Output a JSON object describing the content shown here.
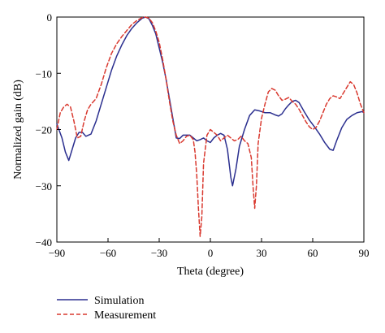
{
  "chart_data": {
    "type": "line",
    "title": "",
    "xlabel": "Theta (degree)",
    "ylabel": "Normalized gain (dB)",
    "xlim": [
      -90,
      90
    ],
    "ylim": [
      -40,
      0
    ],
    "xticks": [
      -90,
      -60,
      -30,
      0,
      30,
      60,
      90
    ],
    "yticks": [
      0,
      -10,
      -20,
      -30,
      -40
    ],
    "grid": false,
    "legend_position": "bottom-left, below plot",
    "series": [
      {
        "name": "Simulation",
        "color": "#2b2f8f",
        "style": "solid",
        "x": [
          -90,
          -87,
          -85,
          -83,
          -81,
          -79,
          -77,
          -75,
          -73,
          -70,
          -67,
          -64,
          -61,
          -58,
          -55,
          -52,
          -49,
          -46,
          -43,
          -40,
          -38,
          -36,
          -34,
          -32,
          -30,
          -28,
          -26,
          -24,
          -22,
          -20,
          -18,
          -16,
          -14,
          -12,
          -10,
          -8,
          -6,
          -4,
          -2,
          0,
          2,
          4,
          6,
          8,
          10,
          12,
          13,
          15,
          17,
          20,
          23,
          26,
          29,
          32,
          35,
          38,
          40,
          42,
          44,
          46,
          48,
          50,
          52,
          55,
          58,
          61,
          64,
          67,
          70,
          72,
          74,
          77,
          80,
          83,
          86,
          89,
          90
        ],
        "y": [
          -19,
          -21.5,
          -24,
          -25.5,
          -23.5,
          -21.5,
          -20.5,
          -20.5,
          -21.2,
          -20.8,
          -18.5,
          -15.5,
          -12.5,
          -9.5,
          -7,
          -5,
          -3.3,
          -2,
          -1,
          -0.2,
          0,
          -0.3,
          -1.5,
          -3,
          -5.5,
          -8,
          -11,
          -14.5,
          -18,
          -21.5,
          -21.6,
          -21,
          -21,
          -21,
          -21.5,
          -22,
          -21.8,
          -21.5,
          -22,
          -22.3,
          -21.5,
          -21,
          -20.7,
          -21,
          -23.5,
          -28.5,
          -30,
          -27,
          -23,
          -20,
          -17.5,
          -16.5,
          -16.7,
          -17,
          -17,
          -17.4,
          -17.6,
          -17.2,
          -16.3,
          -15.6,
          -15,
          -14.8,
          -15.2,
          -16.8,
          -18.3,
          -19.5,
          -20.8,
          -22.3,
          -23.5,
          -23.7,
          -22,
          -19.7,
          -18.2,
          -17.5,
          -17,
          -16.8,
          -17
        ]
      },
      {
        "name": "Measurement",
        "color": "#d9392f",
        "style": "dashed",
        "x": [
          -90,
          -88,
          -86,
          -84,
          -82,
          -80,
          -78,
          -76,
          -74,
          -72,
          -70,
          -67,
          -64,
          -61,
          -58,
          -55,
          -52,
          -49,
          -46,
          -43,
          -40,
          -38,
          -36,
          -34,
          -32,
          -30,
          -28,
          -26,
          -24,
          -22,
          -20,
          -18,
          -16,
          -14,
          -12,
          -10,
          -9,
          -8,
          -7,
          -6,
          -5,
          -4,
          -2,
          0,
          2,
          4,
          6,
          8,
          10,
          12,
          14,
          16,
          18,
          20,
          22,
          24,
          25,
          26,
          27,
          28,
          30,
          32,
          34,
          36,
          38,
          40,
          42,
          44,
          46,
          48,
          50,
          52,
          54,
          56,
          58,
          60,
          62,
          64,
          66,
          68,
          70,
          72,
          74,
          76,
          78,
          80,
          82,
          84,
          86,
          88,
          90
        ],
        "y": [
          -20,
          -17,
          -16,
          -15.5,
          -16,
          -18.5,
          -21.5,
          -21.2,
          -18.5,
          -16.5,
          -15.5,
          -14.5,
          -12,
          -9,
          -6.5,
          -4.8,
          -3.5,
          -2.4,
          -1.3,
          -0.6,
          -0.1,
          0,
          -0.2,
          -1,
          -2.5,
          -4.5,
          -7.5,
          -11,
          -15,
          -18.5,
          -21,
          -22.5,
          -22,
          -21.2,
          -21,
          -21.8,
          -24,
          -28,
          -34,
          -39,
          -35.5,
          -26,
          -21,
          -20,
          -20.5,
          -21,
          -22,
          -21.5,
          -21,
          -21.5,
          -22,
          -21.8,
          -21.2,
          -22,
          -22.5,
          -25,
          -30,
          -34,
          -30,
          -22.5,
          -18,
          -15.5,
          -13.3,
          -12.7,
          -13,
          -14,
          -14.8,
          -14.6,
          -14.3,
          -15,
          -15.5,
          -16.4,
          -17.5,
          -18.6,
          -19.5,
          -20,
          -19.6,
          -18.5,
          -17,
          -15.5,
          -14.5,
          -14,
          -14.2,
          -14.5,
          -13.5,
          -12.5,
          -11.5,
          -12,
          -13.5,
          -15.5,
          -17
        ]
      }
    ]
  }
}
